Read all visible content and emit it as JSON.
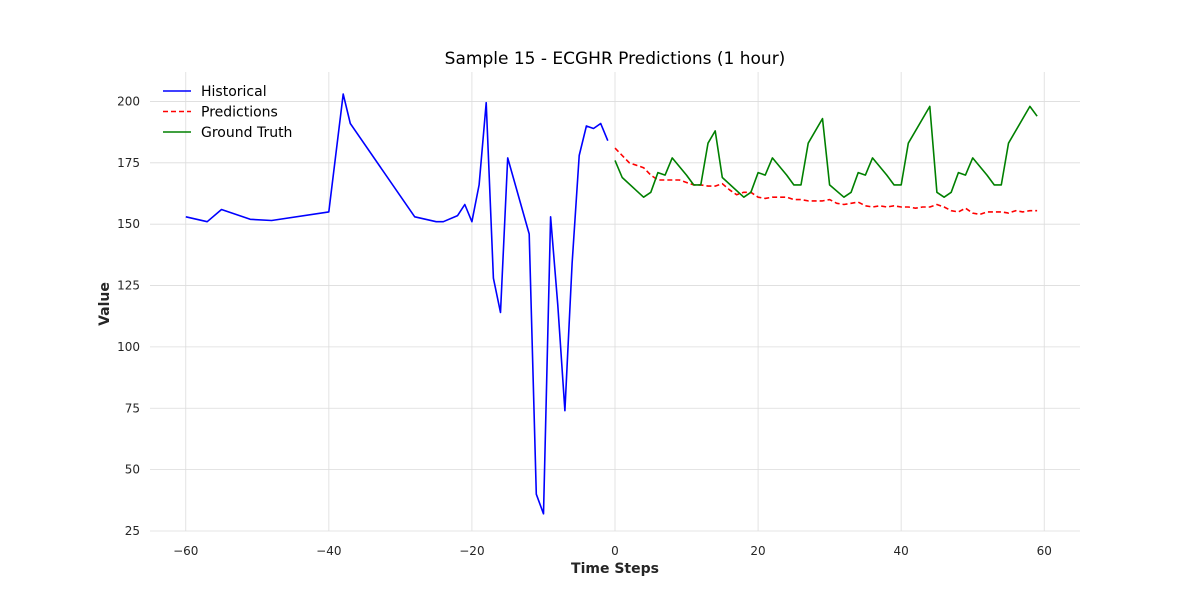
{
  "chart_data": {
    "type": "line",
    "title": "Sample 15 - ECGHR Predictions (1 hour)",
    "xlabel": "Time Steps",
    "ylabel": "Value",
    "xlim": [
      -65,
      65
    ],
    "ylim": [
      25,
      212
    ],
    "xticks": [
      -60,
      -40,
      -20,
      0,
      20,
      40,
      60
    ],
    "xtick_labels": [
      "−60",
      "−40",
      "−20",
      "0",
      "20",
      "40",
      "60"
    ],
    "yticks": [
      25,
      50,
      75,
      100,
      125,
      150,
      175,
      200
    ],
    "ytick_labels": [
      "25",
      "50",
      "75",
      "100",
      "125",
      "150",
      "175",
      "200"
    ],
    "grid": true,
    "legend_position": "top-left",
    "series": [
      {
        "name": "Historical",
        "color": "#0000ff",
        "dash": "solid",
        "x": [
          -60,
          -57,
          -55,
          -51,
          -48,
          -40,
          -38,
          -37,
          -28,
          -25,
          -24,
          -22,
          -21,
          -20,
          -19,
          -18,
          -17,
          -16,
          -15,
          -12,
          -11,
          -10,
          -9,
          -8,
          -7,
          -6,
          -5,
          -4,
          -3,
          -2,
          -1
        ],
        "y": [
          153,
          151,
          156,
          152,
          151.5,
          155,
          203,
          191,
          153,
          151,
          151,
          153.5,
          158,
          151,
          166,
          199.5,
          128,
          114,
          177,
          146,
          40,
          32,
          153,
          117,
          74,
          134,
          178,
          190,
          189,
          191,
          184
        ]
      },
      {
        "name": "Predictions",
        "color": "#ff0000",
        "dash": "dashed",
        "x": [
          0,
          1,
          2,
          3,
          4,
          5,
          6,
          7,
          8,
          9,
          10,
          11,
          12,
          13,
          14,
          15,
          16,
          17,
          18,
          19,
          20,
          21,
          22,
          23,
          24,
          25,
          26,
          27,
          28,
          29,
          30,
          31,
          32,
          33,
          34,
          35,
          36,
          37,
          38,
          39,
          40,
          41,
          42,
          43,
          44,
          45,
          46,
          47,
          48,
          49,
          50,
          51,
          52,
          53,
          54,
          55,
          56,
          57,
          58,
          59
        ],
        "y": [
          181,
          178,
          175,
          174,
          173,
          170,
          168,
          168,
          168,
          168,
          167,
          166,
          166,
          165.5,
          165.5,
          166.5,
          164,
          162,
          163,
          163,
          161,
          160.5,
          161,
          161,
          161,
          160,
          160,
          159.5,
          159.5,
          159.5,
          160,
          158.5,
          158,
          158.5,
          159,
          157.5,
          157,
          157.5,
          157,
          157.5,
          157,
          157,
          156.5,
          157,
          157,
          158,
          157,
          155.5,
          155,
          156.5,
          154.5,
          154,
          155,
          155,
          155,
          154.5,
          155.5,
          155,
          155.5,
          155.5
        ]
      },
      {
        "name": "Ground Truth",
        "color": "#008000",
        "dash": "solid",
        "x": [
          0,
          1,
          4,
          5,
          6,
          7,
          8,
          10,
          11,
          12,
          13,
          14,
          15,
          18,
          19,
          20,
          21,
          22,
          24,
          25,
          26,
          27,
          29,
          30,
          32,
          33,
          34,
          35,
          36,
          38,
          39,
          40,
          41,
          44,
          45,
          46,
          47,
          48,
          49,
          50,
          52,
          53,
          54,
          55,
          58,
          59
        ],
        "y": [
          176,
          169,
          161,
          163,
          171,
          170,
          177,
          170,
          166,
          166,
          183,
          188,
          169,
          161,
          163,
          171,
          170,
          177,
          170,
          166,
          166,
          183,
          193,
          166,
          161,
          163,
          171,
          170,
          177,
          170,
          166,
          166,
          183,
          198,
          163,
          161,
          163,
          171,
          170,
          177,
          170,
          166,
          166,
          183,
          198,
          194
        ]
      }
    ]
  }
}
